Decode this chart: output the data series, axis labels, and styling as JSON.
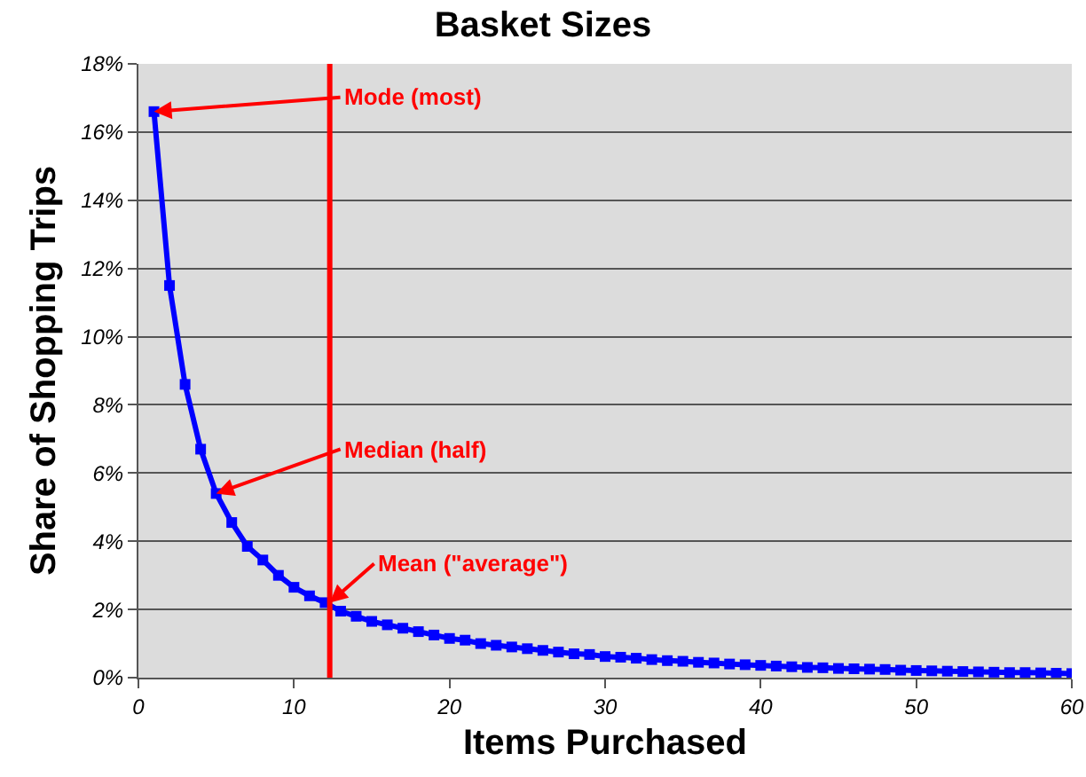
{
  "chart_data": {
    "type": "line",
    "title": "Basket Sizes",
    "xlabel": "Items Purchased",
    "ylabel": "Share of Shopping Trips",
    "x": [
      1,
      2,
      3,
      4,
      5,
      6,
      7,
      8,
      9,
      10,
      11,
      12,
      13,
      14,
      15,
      16,
      17,
      18,
      19,
      20,
      21,
      22,
      23,
      24,
      25,
      26,
      27,
      28,
      29,
      30,
      31,
      32,
      33,
      34,
      35,
      36,
      37,
      38,
      39,
      40,
      41,
      42,
      43,
      44,
      45,
      46,
      47,
      48,
      49,
      50,
      51,
      52,
      53,
      54,
      55,
      56,
      57,
      58,
      59,
      60
    ],
    "series": [
      {
        "color": "#0000ff",
        "values": [
          16.6,
          11.5,
          8.6,
          6.7,
          5.4,
          4.55,
          3.85,
          3.45,
          3.0,
          2.65,
          2.4,
          2.2,
          1.95,
          1.8,
          1.65,
          1.55,
          1.45,
          1.35,
          1.25,
          1.15,
          1.1,
          1.0,
          0.95,
          0.9,
          0.85,
          0.8,
          0.75,
          0.7,
          0.68,
          0.62,
          0.6,
          0.57,
          0.53,
          0.5,
          0.48,
          0.45,
          0.43,
          0.4,
          0.38,
          0.36,
          0.34,
          0.32,
          0.3,
          0.29,
          0.27,
          0.26,
          0.25,
          0.24,
          0.22,
          0.21,
          0.2,
          0.19,
          0.18,
          0.17,
          0.16,
          0.15,
          0.15,
          0.14,
          0.13,
          0.12
        ]
      }
    ],
    "xlim": [
      0,
      60
    ],
    "xticks": [
      0,
      10,
      20,
      30,
      40,
      50,
      60
    ],
    "ylim": [
      0,
      18
    ],
    "yticks": [
      {
        "value": 0,
        "label": "0%"
      },
      {
        "value": 2,
        "label": "2%"
      },
      {
        "value": 4,
        "label": "4%"
      },
      {
        "value": 6,
        "label": "6%"
      },
      {
        "value": 8,
        "label": "8%"
      },
      {
        "value": 10,
        "label": "10%"
      },
      {
        "value": 12,
        "label": "12%"
      },
      {
        "value": 14,
        "label": "14%"
      },
      {
        "value": 16,
        "label": "16%"
      },
      {
        "value": 18,
        "label": "18%"
      }
    ],
    "grid": "y",
    "marker": "square",
    "line_style": "solid",
    "ref_lines": [
      {
        "axis": "x",
        "value": 12.3,
        "color": "#ff0000"
      }
    ],
    "annotations": [
      {
        "text": "Mode (most)",
        "x": 1,
        "y": 16.6
      },
      {
        "text": "Median (half)",
        "x": 5,
        "y": 5.4
      },
      {
        "text": "Mean (\"average\")",
        "x": 12.3,
        "y": 2.2
      }
    ]
  }
}
